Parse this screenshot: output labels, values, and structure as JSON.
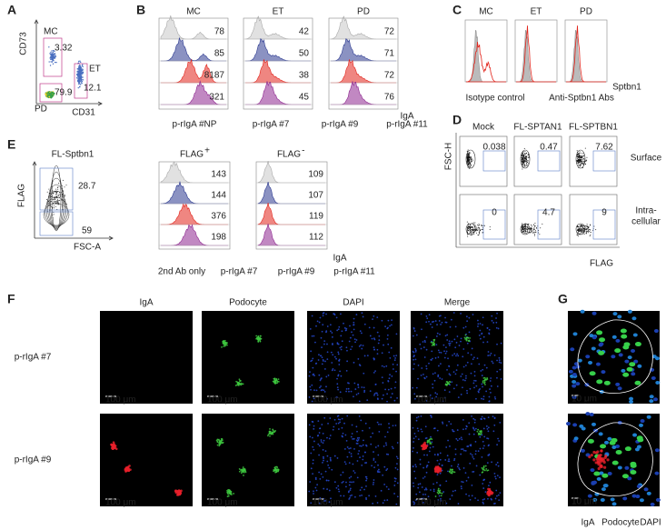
{
  "A": {
    "label": "A",
    "y_axis": "CD73",
    "x_axis": "CD31",
    "gates": [
      {
        "name": "MC",
        "value": 3.32
      },
      {
        "name": "ET",
        "value": 12.1
      },
      {
        "name": "PD",
        "value": 79.9
      }
    ]
  },
  "B": {
    "label": "B",
    "columns": [
      "MC",
      "ET",
      "PD"
    ],
    "series": [
      {
        "name": "p-rIgA #NP",
        "color": "#a9a9a9",
        "values": [
          78,
          42,
          72
        ]
      },
      {
        "name": "p-rIgA #7",
        "color": "#2b3990",
        "values": [
          85,
          50,
          71
        ]
      },
      {
        "name": "p-rIgA #9",
        "color": "#e2231a",
        "values": [
          8187,
          38,
          72
        ]
      },
      {
        "name": "p-rIgA #11",
        "color": "#8e278f",
        "values": [
          321,
          45,
          76
        ]
      }
    ],
    "x_axis": "IgA"
  },
  "C": {
    "label": "C",
    "columns": [
      "MC",
      "ET",
      "PD"
    ],
    "legend": [
      "Isotype control",
      "Anti-Sptbn1 Abs"
    ],
    "x_axis": "Sptbn1"
  },
  "D": {
    "label": "D",
    "columns": [
      "Mock",
      "FL-SPTAN1",
      "FL-SPTBN1"
    ],
    "rows": [
      {
        "name": [
          "Surface"
        ],
        "values": [
          0.038,
          0.47,
          7.62
        ]
      },
      {
        "name": [
          "Intra-",
          "cellular"
        ],
        "values": [
          0,
          4.7,
          9
        ]
      }
    ],
    "y_axis": "FSC-H",
    "x_axis": "FLAG"
  },
  "E": {
    "label": "E",
    "sample": "FL-Sptbn1",
    "y_axis": "FLAG",
    "x_axis": "FSC-A",
    "gates": [
      28.7,
      59
    ],
    "columns": [
      {
        "name": "FLAG",
        "sup": "+"
      },
      {
        "name": "FLAG",
        "sup": "-"
      }
    ],
    "series": [
      {
        "name": "2nd Ab only",
        "values": [
          143,
          109
        ]
      },
      {
        "name": "p-rIgA #7",
        "values": [
          144,
          107
        ]
      },
      {
        "name": "p-rIgA #9",
        "values": [
          376,
          119
        ]
      },
      {
        "name": "p-rIgA #11",
        "values": [
          198,
          112
        ]
      }
    ],
    "hist_axis": "IgA"
  },
  "F": {
    "label": "F",
    "columns": [
      "IgA",
      "Podocyte",
      "DAPI",
      "Merge"
    ],
    "rows": [
      "p-rIgA #7",
      "p-rIgA #9"
    ],
    "scale_bar": "100 μm"
  },
  "G": {
    "label": "G",
    "scale_bar": "10 μm",
    "legend": [
      "IgA",
      "Podocyte",
      "DAPI"
    ]
  }
}
